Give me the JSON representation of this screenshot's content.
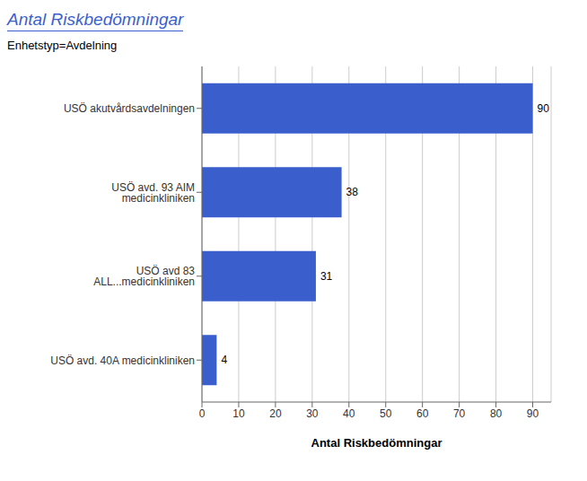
{
  "chart_data": {
    "type": "bar",
    "orientation": "horizontal",
    "title": "Antal Riskbedömningar",
    "subtitle": "Enhetstyp=Avdelning",
    "xlabel": "Antal Riskbedömningar",
    "categories": [
      "USÖ avd. 40A medicinkliniken",
      "USÖ avd 83 ALL...medicinkliniken",
      "USÖ avd. 93 AIM medicinkliniken",
      "USÖ akutvårdsavdelningen"
    ],
    "values": [
      4,
      31,
      38,
      90
    ],
    "color": "#3a5fcd",
    "xlim": [
      0,
      95
    ],
    "xticks": [
      0,
      10,
      20,
      30,
      40,
      50,
      60,
      70,
      80,
      90
    ],
    "grid": true,
    "data_labels": true
  }
}
